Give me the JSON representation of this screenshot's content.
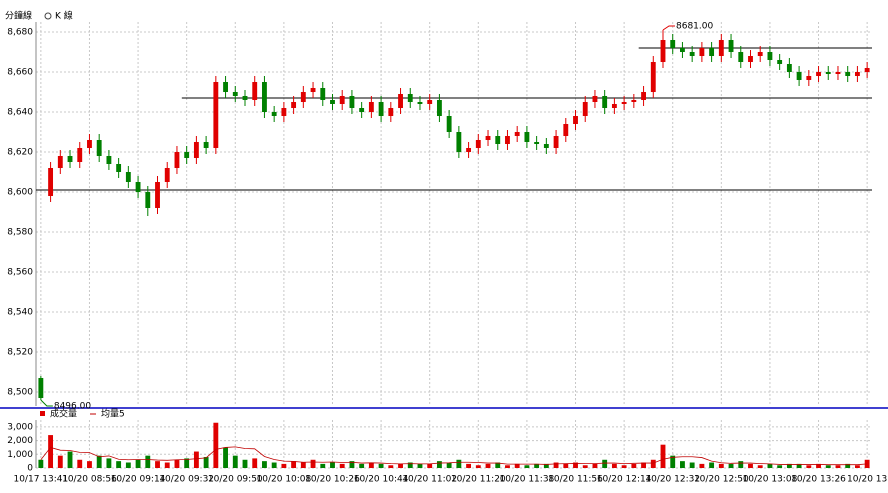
{
  "header": {
    "mode_minute": "分鐘線",
    "mode_k": "K 線"
  },
  "chart_data": [
    {
      "type": "candlestick",
      "up_color": "#e00000",
      "down_color": "#008000",
      "grid": true,
      "open": [
        8507,
        8598,
        8612,
        8618,
        8615,
        8622,
        8626,
        8618,
        8614,
        8610,
        8605,
        8600,
        8592,
        8605,
        8612,
        8620,
        8617,
        8625,
        8622,
        8655,
        8650,
        8648,
        8646,
        8655,
        8640,
        8638,
        8642,
        8645,
        8650,
        8652,
        8646,
        8644,
        8648,
        8642,
        8640,
        8645,
        8638,
        8642,
        8649,
        8645,
        8644,
        8646,
        8638,
        8630,
        8620,
        8622,
        8626,
        8628,
        8624,
        8628,
        8630,
        8625,
        8624,
        8622,
        8628,
        8634,
        8638,
        8645,
        8648,
        8642,
        8644,
        8645,
        8646,
        8650,
        8665,
        8676,
        8672,
        8670,
        8668,
        8672,
        8668,
        8676,
        8670,
        8665,
        8668,
        8670,
        8666,
        8664,
        8660,
        8656,
        8658,
        8660,
        8659,
        8660,
        8658,
        8660
      ],
      "high": [
        8508,
        8615,
        8621,
        8621,
        8625,
        8629,
        8629,
        8621,
        8617,
        8613,
        8608,
        8603,
        8608,
        8615,
        8623,
        8623,
        8628,
        8628,
        8658,
        8658,
        8653,
        8651,
        8658,
        8658,
        8643,
        8645,
        8648,
        8653,
        8655,
        8655,
        8649,
        8651,
        8651,
        8645,
        8648,
        8648,
        8645,
        8652,
        8652,
        8648,
        8649,
        8649,
        8641,
        8633,
        8625,
        8629,
        8631,
        8631,
        8631,
        8633,
        8633,
        8628,
        8627,
        8631,
        8637,
        8641,
        8648,
        8651,
        8651,
        8647,
        8648,
        8649,
        8653,
        8668,
        8681,
        8679,
        8675,
        8673,
        8675,
        8675,
        8679,
        8679,
        8673,
        8671,
        8673,
        8673,
        8669,
        8667,
        8663,
        8661,
        8663,
        8663,
        8663,
        8663,
        8663,
        8665
      ],
      "low": [
        8496,
        8595,
        8609,
        8612,
        8612,
        8619,
        8615,
        8611,
        8607,
        8602,
        8597,
        8588,
        8589,
        8602,
        8609,
        8614,
        8614,
        8619,
        8619,
        8647,
        8645,
        8643,
        8643,
        8637,
        8635,
        8635,
        8639,
        8642,
        8647,
        8643,
        8641,
        8641,
        8639,
        8637,
        8637,
        8635,
        8635,
        8639,
        8642,
        8641,
        8641,
        8635,
        8627,
        8617,
        8617,
        8619,
        8623,
        8621,
        8621,
        8625,
        8622,
        8621,
        8619,
        8619,
        8625,
        8631,
        8635,
        8642,
        8639,
        8639,
        8641,
        8642,
        8643,
        8647,
        8662,
        8669,
        8667,
        8665,
        8665,
        8665,
        8665,
        8667,
        8662,
        8662,
        8665,
        8663,
        8661,
        8657,
        8653,
        8653,
        8655,
        8656,
        8656,
        8655,
        8655,
        8657
      ],
      "close": [
        8497,
        8612,
        8618,
        8615,
        8622,
        8626,
        8618,
        8614,
        8610,
        8605,
        8600,
        8592,
        8605,
        8612,
        8620,
        8617,
        8625,
        8622,
        8655,
        8650,
        8648,
        8646,
        8655,
        8640,
        8638,
        8642,
        8645,
        8650,
        8652,
        8646,
        8644,
        8648,
        8642,
        8640,
        8645,
        8638,
        8642,
        8649,
        8645,
        8644,
        8646,
        8638,
        8630,
        8620,
        8622,
        8626,
        8628,
        8624,
        8628,
        8630,
        8625,
        8624,
        8622,
        8628,
        8634,
        8638,
        8645,
        8648,
        8642,
        8644,
        8645,
        8646,
        8650,
        8665,
        8676,
        8672,
        8670,
        8668,
        8672,
        8668,
        8676,
        8670,
        8665,
        8668,
        8670,
        8666,
        8664,
        8660,
        8656,
        8658,
        8660,
        8659,
        8660,
        8658,
        8660,
        8662
      ],
      "ylim": [
        8493,
        8685
      ],
      "yticks": [
        {
          "value": 8500,
          "label": "8,500"
        },
        {
          "value": 8520,
          "label": "8,520"
        },
        {
          "value": 8540,
          "label": "8,540"
        },
        {
          "value": 8560,
          "label": "8,560"
        },
        {
          "value": 8580,
          "label": "8,580"
        },
        {
          "value": 8600,
          "label": "8,600"
        },
        {
          "value": 8620,
          "label": "8,620"
        },
        {
          "value": 8640,
          "label": "8,640"
        },
        {
          "value": 8660,
          "label": "8,660"
        },
        {
          "value": 8680,
          "label": "8,680"
        }
      ],
      "annotations": [
        {
          "value": 8681,
          "label": "8681.00",
          "index": 64,
          "color": "#e00000"
        },
        {
          "value": 8496,
          "label": "8496.00",
          "index": 0,
          "color": "#008000"
        }
      ],
      "reference_lines": [
        {
          "value": 8601,
          "start_index": 0
        },
        {
          "value": 8647,
          "start_index": 15
        },
        {
          "value": 8672,
          "start_index": 62
        }
      ]
    },
    {
      "type": "bar",
      "categories": [
        "10/17 13:41",
        null,
        null,
        null,
        null,
        "10/20 08:56",
        null,
        null,
        null,
        null,
        "10/20 09:14",
        null,
        null,
        null,
        null,
        "10/20 09:32",
        null,
        null,
        null,
        null,
        "10/20 09:50",
        null,
        null,
        null,
        null,
        "10/20 10:08",
        null,
        null,
        null,
        null,
        "10/20 10:26",
        null,
        null,
        null,
        null,
        "10/20 10:44",
        null,
        null,
        null,
        null,
        "10/20 11:02",
        null,
        null,
        null,
        null,
        "10/20 11:20",
        null,
        null,
        null,
        null,
        "10/20 11:38",
        null,
        null,
        null,
        null,
        "10/20 11:56",
        null,
        null,
        null,
        null,
        "10/20 12:14",
        null,
        null,
        null,
        null,
        "10/20 12:32",
        null,
        null,
        null,
        null,
        "10/20 12:50",
        null,
        null,
        null,
        null,
        "10/20 13:08",
        null,
        null,
        null,
        null,
        "10/20 13:26",
        null,
        null,
        null,
        null,
        "10/20 13"
      ],
      "series": [
        {
          "name": "成交量",
          "color": "#e00000",
          "values": [
            600,
            2400,
            900,
            1200,
            600,
            500,
            900,
            700,
            500,
            400,
            600,
            900,
            500,
            400,
            600,
            700,
            1200,
            800,
            3300,
            1500,
            900,
            600,
            700,
            500,
            400,
            300,
            500,
            400,
            600,
            300,
            400,
            300,
            500,
            300,
            400,
            300,
            200,
            300,
            400,
            300,
            300,
            500,
            400,
            600,
            300,
            200,
            300,
            400,
            200,
            300,
            200,
            300,
            300,
            400,
            300,
            400,
            200,
            300,
            600,
            300,
            200,
            300,
            400,
            600,
            1700,
            900,
            500,
            400,
            300,
            400,
            300,
            300,
            500,
            300,
            200,
            300,
            200,
            300,
            300,
            200,
            300,
            200,
            200,
            300,
            200,
            600
          ]
        },
        {
          "name": "均量5",
          "color": "#c00000",
          "values": [
            600,
            1500,
            1300,
            1275,
            1140,
            1120,
            820,
            880,
            640,
            600,
            620,
            620,
            580,
            560,
            600,
            620,
            680,
            740,
            1360,
            1500,
            1540,
            1420,
            1400,
            840,
            620,
            500,
            480,
            420,
            440,
            420,
            440,
            400,
            420,
            360,
            380,
            360,
            320,
            300,
            320,
            300,
            300,
            360,
            380,
            420,
            420,
            400,
            360,
            360,
            280,
            280,
            280,
            280,
            260,
            300,
            320,
            340,
            320,
            320,
            360,
            360,
            320,
            340,
            360,
            360,
            640,
            780,
            820,
            820,
            760,
            500,
            380,
            340,
            360,
            360,
            320,
            300,
            260,
            260,
            260,
            260,
            260,
            240,
            240,
            240,
            240,
            300
          ]
        }
      ],
      "ylim": [
        0,
        3500
      ],
      "yticks": [
        0,
        {
          "value": 1000,
          "label": "1,000"
        },
        {
          "value": 2000,
          "label": "2,000"
        },
        {
          "value": 3000,
          "label": "3,000"
        }
      ],
      "grid": true
    }
  ]
}
